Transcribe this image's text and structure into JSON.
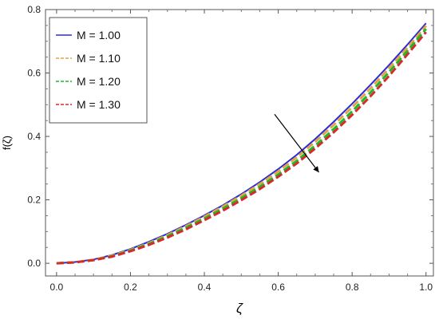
{
  "chart_data": {
    "type": "line",
    "xlabel": "ζ",
    "ylabel": "f(ζ)",
    "xlim": [
      -0.03,
      1.02
    ],
    "ylim": [
      -0.04,
      0.8
    ],
    "xticks": [
      0.0,
      0.2,
      0.4,
      0.6,
      0.8,
      1.0
    ],
    "xtick_labels": [
      "0.0",
      "0.2",
      "0.4",
      "0.6",
      "0.8",
      "1.0"
    ],
    "yticks": [
      0.0,
      0.2,
      0.4,
      0.6,
      0.8
    ],
    "ytick_labels": [
      "0.0",
      "0.2",
      "0.4",
      "0.6",
      "0.8"
    ],
    "grid": false,
    "legend_position": "top-left",
    "x": [
      0.0,
      0.05,
      0.1,
      0.15,
      0.2,
      0.25,
      0.3,
      0.35,
      0.4,
      0.45,
      0.5,
      0.55,
      0.6,
      0.65,
      0.7,
      0.75,
      0.8,
      0.85,
      0.9,
      0.95,
      1.0
    ],
    "series": [
      {
        "name": "M = 1.00",
        "color": "#2b2bd6",
        "dash": "solid",
        "values": [
          0.0,
          0.004,
          0.012,
          0.026,
          0.045,
          0.068,
          0.093,
          0.121,
          0.151,
          0.183,
          0.218,
          0.256,
          0.297,
          0.342,
          0.392,
          0.446,
          0.503,
          0.563,
          0.625,
          0.69,
          0.757
        ]
      },
      {
        "name": "M = 1.10",
        "color": "#e2a24a",
        "dash": "dashed",
        "values": [
          0.0,
          0.003,
          0.011,
          0.024,
          0.042,
          0.064,
          0.089,
          0.117,
          0.147,
          0.179,
          0.213,
          0.25,
          0.29,
          0.334,
          0.383,
          0.436,
          0.492,
          0.552,
          0.615,
          0.681,
          0.749
        ]
      },
      {
        "name": "M = 1.20",
        "color": "#1fb82a",
        "dash": "dashed",
        "values": [
          0.0,
          0.003,
          0.01,
          0.022,
          0.04,
          0.061,
          0.085,
          0.112,
          0.141,
          0.172,
          0.205,
          0.241,
          0.28,
          0.323,
          0.371,
          0.423,
          0.479,
          0.539,
          0.603,
          0.67,
          0.739
        ]
      },
      {
        "name": "M = 1.30",
        "color": "#d62b2b",
        "dash": "dashed",
        "values": [
          0.0,
          0.003,
          0.01,
          0.021,
          0.038,
          0.058,
          0.081,
          0.107,
          0.136,
          0.166,
          0.199,
          0.234,
          0.273,
          0.315,
          0.362,
          0.413,
          0.468,
          0.527,
          0.591,
          0.659,
          0.729
        ]
      }
    ],
    "annotation": {
      "type": "arrow",
      "from": [
        0.59,
        0.47
      ],
      "to": [
        0.71,
        0.287
      ],
      "meaning": "increasing M"
    }
  }
}
